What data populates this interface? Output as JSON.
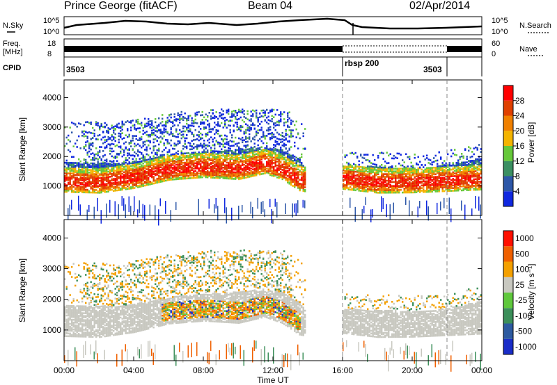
{
  "header": {
    "station": "Prince George (fitACF)",
    "beam": "Beam 04",
    "date": "02/Apr/2014"
  },
  "summary": {
    "nsky_label": "N.Sky",
    "nsearch_label": "N.Search",
    "nsky_ticks": [
      "10^5",
      "10^0"
    ],
    "nsearch_ticks": [
      "10^5",
      "10^0"
    ],
    "freq_label_1": "Freq.",
    "freq_label_2": "[MHz]",
    "freq_ticks": [
      "18",
      "8"
    ],
    "nave_label": "Nave",
    "nave_ticks": [
      "60",
      "0"
    ],
    "cpid_label": "CPID",
    "cpid_segments": [
      {
        "label": "3503",
        "start_hour": 0
      },
      {
        "label": "rbsp 200",
        "start_hour": 16
      },
      {
        "label": "3503",
        "start_hour": 22
      }
    ]
  },
  "chart_data": [
    {
      "type": "heatmap",
      "quantity": "power",
      "ylabel": "Slant Range [km]",
      "ylim": [
        0,
        4600
      ],
      "yticks": [
        1000,
        2000,
        3000,
        4000
      ],
      "xlim_hours": [
        0,
        24
      ],
      "colorbar_label": "Power [dB]",
      "colorbar_ticks": [
        "4",
        "8",
        "12",
        "16",
        "20",
        "24",
        "28"
      ],
      "colors": [
        "#1028e0",
        "#2d57a8",
        "#3b8f62",
        "#66c83a",
        "#f4b400",
        "#f08000",
        "#e04000",
        "#ff0000"
      ]
    },
    {
      "type": "heatmap",
      "quantity": "velocity",
      "ylabel": "Slant Range [km]",
      "ylim": [
        0,
        4600
      ],
      "yticks": [
        1000,
        2000,
        3000,
        4000
      ],
      "xlim_hours": [
        0,
        24
      ],
      "xlabel": "Time UT",
      "xticks": [
        "00:00",
        "04:00",
        "08:00",
        "12:00",
        "16:00",
        "20:00",
        "00:00"
      ],
      "colorbar_label": "Velocity [m s⁻¹]",
      "colorbar_ticks": [
        "1000",
        "500",
        "100",
        "25",
        "-25",
        "-100",
        "-500",
        "-1000"
      ],
      "colors": [
        "#1a2dc8",
        "#2d5aa0",
        "#3c8f5a",
        "#5fc83c",
        "#c8c8c0",
        "#f4a000",
        "#f06000",
        "#ff1000"
      ]
    }
  ]
}
